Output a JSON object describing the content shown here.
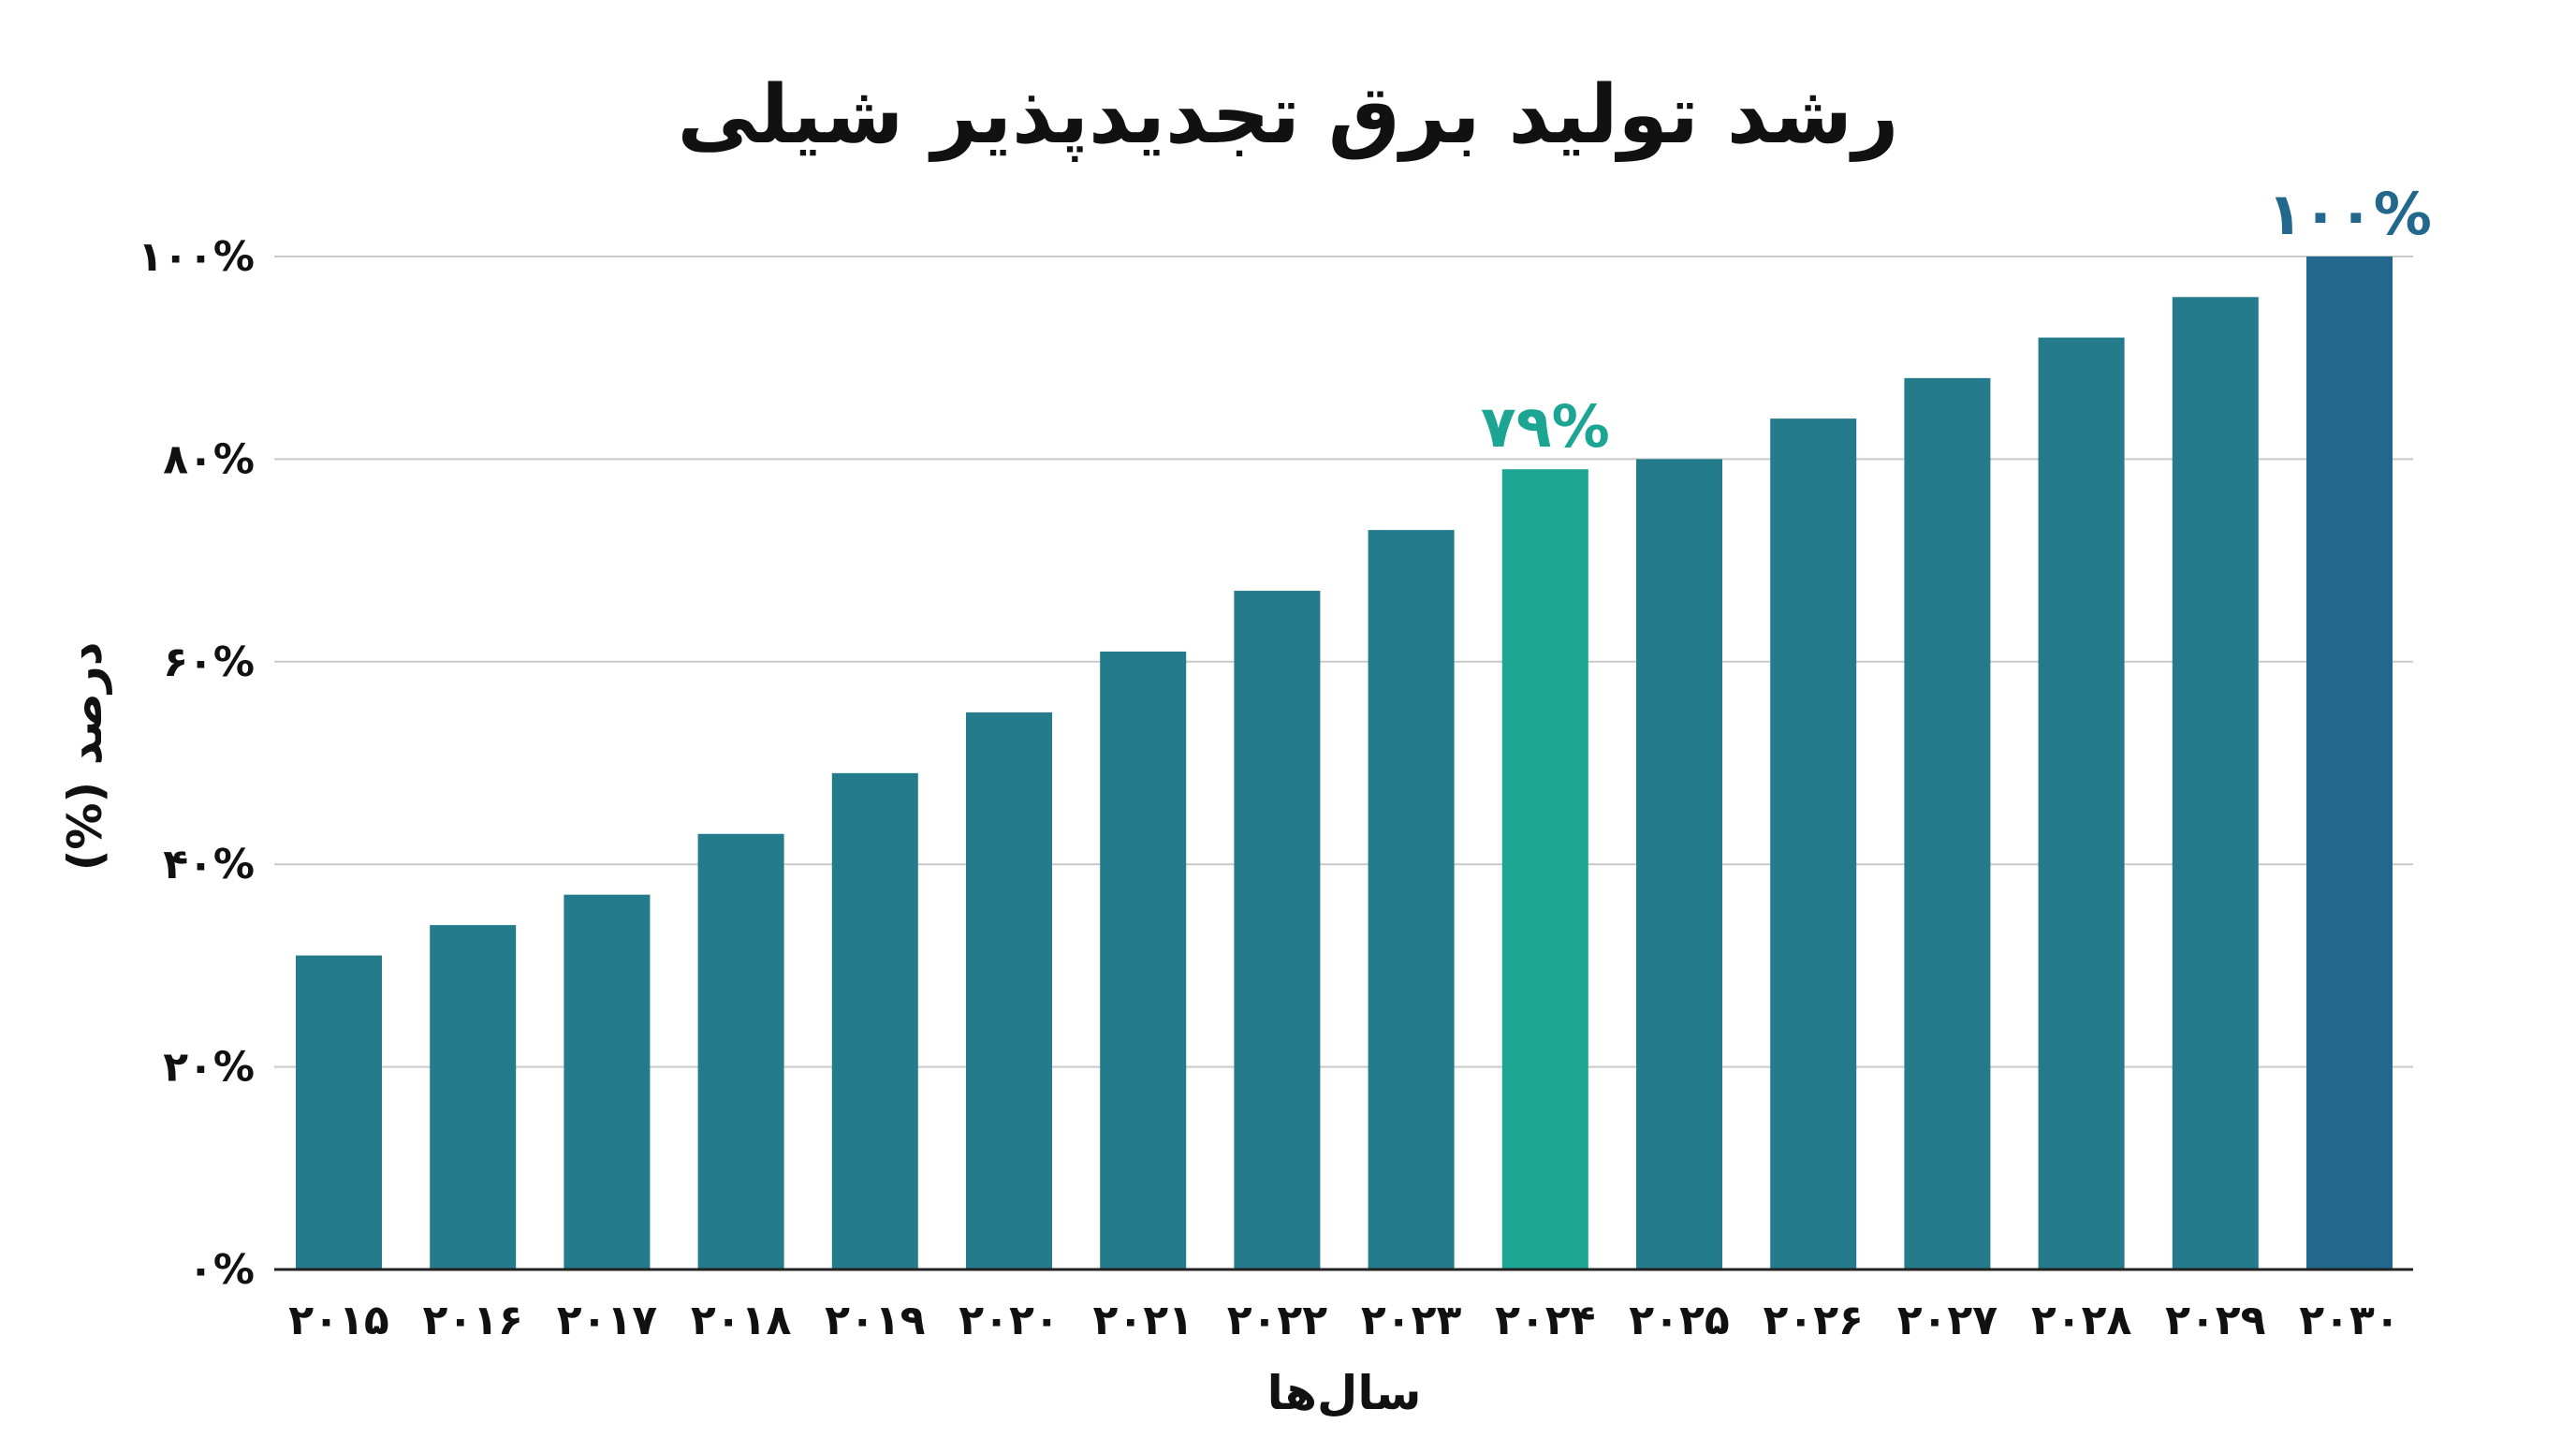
{
  "chart_data": {
    "type": "bar",
    "title": "رشد تولید برق تجدیدپذیر شیلی",
    "xlabel": "سال‌ها",
    "ylabel": "درصد (%)",
    "ylim": [
      0,
      100
    ],
    "yticks": [
      0,
      20,
      40,
      60,
      80,
      100
    ],
    "ytick_labels": [
      "۰%",
      "۲۰%",
      "۴۰%",
      "۶۰%",
      "۸۰%",
      "۱۰۰%"
    ],
    "grid": true,
    "categories": [
      "۲۰۱۵",
      "۲۰۱۶",
      "۲۰۱۷",
      "۲۰۱۸",
      "۲۰۱۹",
      "۲۰۲۰",
      "۲۰۲۱",
      "۲۰۲۲",
      "۲۰۲۳",
      "۲۰۲۴",
      "۲۰۲۵",
      "۲۰۲۶",
      "۲۰۲۷",
      "۲۰۲۸",
      "۲۰۲۹",
      "۲۰۳۰"
    ],
    "values": [
      31,
      34,
      37,
      43,
      49,
      55,
      61,
      67,
      73,
      79,
      80,
      84,
      88,
      92,
      96,
      100
    ],
    "bar_colors": [
      "#247b8b",
      "#247b8b",
      "#247b8b",
      "#247b8b",
      "#247b8b",
      "#247b8b",
      "#247b8b",
      "#247b8b",
      "#247b8b",
      "#1ba592",
      "#247b8b",
      "#247b8b",
      "#247b8b",
      "#247b8b",
      "#247b8b",
      "#22678c"
    ],
    "data_labels": [
      {
        "index": 9,
        "text": "۷۹%",
        "color": "#1ba592"
      },
      {
        "index": 15,
        "text": "۱۰۰%",
        "color": "#22678c"
      }
    ]
  }
}
